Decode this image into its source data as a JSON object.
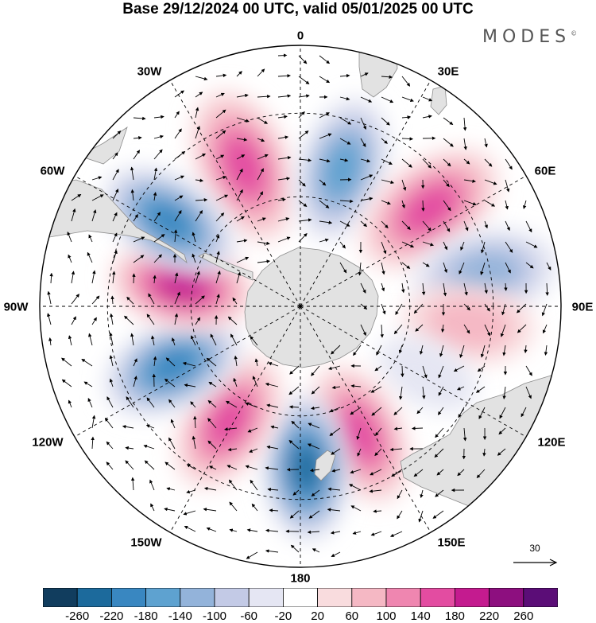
{
  "title": "Base 29/12/2024 00 UTC, valid 05/01/2025 00 UTC",
  "brand": "MODES",
  "brand_mark": "©",
  "projection": "south-polar-stereographic",
  "longitude_labels": [
    "0",
    "30E",
    "60E",
    "90E",
    "120E",
    "150E",
    "180",
    "150W",
    "120W",
    "90W",
    "60W",
    "30W"
  ],
  "reference_vector": {
    "label": "30",
    "value": 30
  },
  "colorbar": {
    "tick_labels": [
      "-260",
      "-220",
      "-180",
      "-140",
      "-100",
      "-60",
      "-20",
      "20",
      "60",
      "100",
      "140",
      "180",
      "220",
      "260"
    ],
    "bins": [
      "#113d5e",
      "#1c6a9c",
      "#3987c1",
      "#5ea2d0",
      "#93b3da",
      "#c3cae6",
      "#e5e6f3",
      "#ffffff",
      "#f9dcde",
      "#f5b8c4",
      "#ef86b0",
      "#e34ca1",
      "#c41b8f",
      "#8d0f7f",
      "#5b0d77"
    ]
  },
  "colors": {
    "land": "#e2e2e2",
    "coast": "#8c8c8c",
    "grid": "#000000"
  },
  "anomaly_centers": [
    {
      "sign": "positive",
      "bearing_deg": -22,
      "radius_frac": 0.58,
      "strength": 150,
      "size": 1.1
    },
    {
      "sign": "negative",
      "bearing_deg": 17,
      "radius_frac": 0.55,
      "strength": -150,
      "size": 1.0
    },
    {
      "sign": "positive",
      "bearing_deg": 53,
      "radius_frac": 0.62,
      "strength": 160,
      "size": 1.1
    },
    {
      "sign": "negative",
      "bearing_deg": 80,
      "radius_frac": 0.72,
      "strength": -110,
      "size": 1.0
    },
    {
      "sign": "positive",
      "bearing_deg": 96,
      "radius_frac": 0.65,
      "strength": 60,
      "size": 0.9
    },
    {
      "sign": "negative",
      "bearing_deg": 118,
      "radius_frac": 0.55,
      "strength": -40,
      "size": 0.7
    },
    {
      "sign": "positive",
      "bearing_deg": 155,
      "radius_frac": 0.54,
      "strength": 140,
      "size": 1.0
    },
    {
      "sign": "negative",
      "bearing_deg": 178,
      "radius_frac": 0.62,
      "strength": -230,
      "size": 1.0
    },
    {
      "sign": "positive",
      "bearing_deg": -148,
      "radius_frac": 0.52,
      "strength": 150,
      "size": 1.0
    },
    {
      "sign": "negative",
      "bearing_deg": -115,
      "radius_frac": 0.54,
      "strength": -190,
      "size": 1.0
    },
    {
      "sign": "positive",
      "bearing_deg": -80,
      "radius_frac": 0.46,
      "strength": 200,
      "size": 1.0
    },
    {
      "sign": "negative",
      "bearing_deg": -57,
      "radius_frac": 0.6,
      "strength": -170,
      "size": 1.0
    }
  ]
}
